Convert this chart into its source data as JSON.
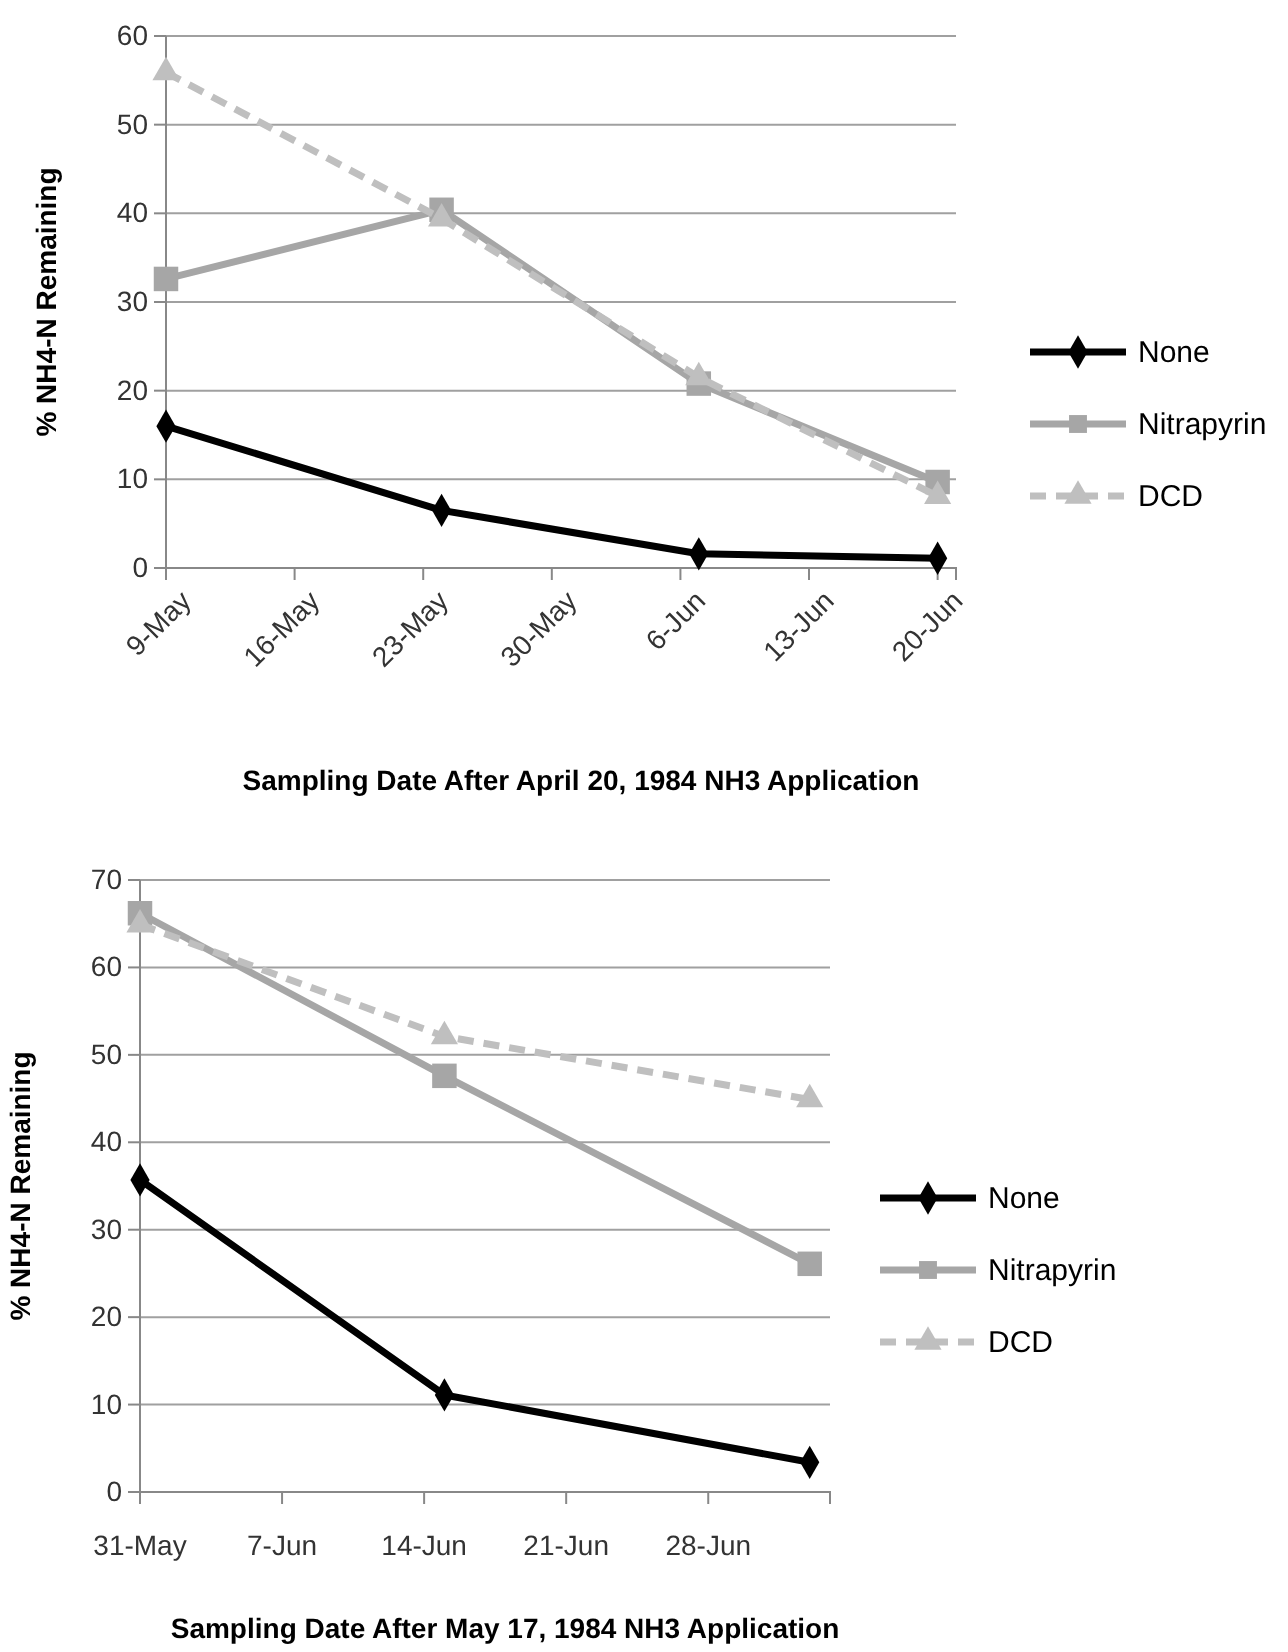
{
  "chart_data": [
    {
      "type": "line",
      "ylabel": "% NH4-N Remaining",
      "xlabel": "Sampling Date After April 20, 1984 NH3 Application",
      "x": [
        "1984-05-09",
        "1984-05-24",
        "1984-06-07",
        "1984-06-20"
      ],
      "xlim": [
        "1984-05-09",
        "1984-06-21"
      ],
      "xticks": [
        {
          "value": "1984-05-09",
          "label": "9-May"
        },
        {
          "value": "1984-05-16",
          "label": "16-May"
        },
        {
          "value": "1984-05-23",
          "label": "23-May"
        },
        {
          "value": "1984-05-30",
          "label": "30-May"
        },
        {
          "value": "1984-06-06",
          "label": "6-Jun"
        },
        {
          "value": "1984-06-13",
          "label": "13-Jun"
        },
        {
          "value": "1984-06-20",
          "label": "20-Jun"
        }
      ],
      "ylim": [
        0,
        60
      ],
      "yticks": [
        0,
        10,
        20,
        30,
        40,
        50,
        60
      ],
      "grid": "y",
      "legend": "right",
      "series": [
        {
          "name": "None",
          "color": "#000000",
          "marker": "diamond",
          "line_style": "solid",
          "values": [
            16.0,
            6.5,
            1.6,
            1.1
          ]
        },
        {
          "name": "Nitrapyrin",
          "color": "#a6a6a6",
          "marker": "square",
          "line_style": "solid",
          "values": [
            32.6,
            40.4,
            20.8,
            9.7
          ]
        },
        {
          "name": "DCD",
          "color": "#bfbfbf",
          "marker": "triangle",
          "line_style": "dashed",
          "values": [
            55.9,
            39.4,
            21.5,
            8.1
          ]
        }
      ]
    },
    {
      "type": "line",
      "ylabel": "% NH4-N Remaining",
      "xlabel": "Sampling Date After May 17, 1984 NH3 Application",
      "x": [
        "1984-05-31",
        "1984-06-15",
        "1984-07-03"
      ],
      "xlim": [
        "1984-05-31",
        "1984-07-04"
      ],
      "xticks": [
        {
          "value": "1984-05-31",
          "label": "31-May"
        },
        {
          "value": "1984-06-07",
          "label": "7-Jun"
        },
        {
          "value": "1984-06-14",
          "label": "14-Jun"
        },
        {
          "value": "1984-06-21",
          "label": "21-Jun"
        },
        {
          "value": "1984-06-28",
          "label": "28-Jun"
        }
      ],
      "ylim": [
        0,
        70
      ],
      "yticks": [
        0,
        10,
        20,
        30,
        40,
        50,
        60,
        70
      ],
      "grid": "y",
      "legend": "right",
      "series": [
        {
          "name": "None",
          "color": "#000000",
          "marker": "diamond",
          "line_style": "solid",
          "values": [
            35.7,
            11.1,
            3.4
          ]
        },
        {
          "name": "Nitrapyrin",
          "color": "#a6a6a6",
          "marker": "square",
          "line_style": "solid",
          "values": [
            66.2,
            47.6,
            26.1
          ]
        },
        {
          "name": "DCD",
          "color": "#bfbfbf",
          "marker": "triangle",
          "line_style": "dashed",
          "values": [
            64.9,
            52.1,
            44.9
          ]
        }
      ]
    }
  ]
}
